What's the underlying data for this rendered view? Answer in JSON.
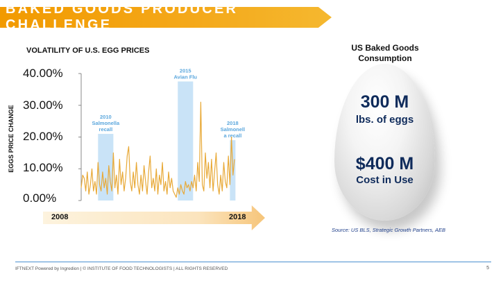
{
  "banner": {
    "title": "BAKED GOODS PRODUCER CHALLENGE"
  },
  "chart_data": {
    "type": "line",
    "title": "VOLATILITY OF U.S. EGG PRICES",
    "xlabel": "",
    "ylabel": "EGGS PRICE CHANGE",
    "y_ticks": [
      "40.00%",
      "30.00%",
      "20.00%",
      "10.00%",
      "0.00%"
    ],
    "ylim": [
      0,
      40
    ],
    "xlim": [
      2008,
      2018
    ],
    "series": [
      {
        "name": "Egg price change (%)",
        "color": "#e8a937",
        "x": [
          2008.0,
          2008.1,
          2008.2,
          2008.3,
          2008.4,
          2008.5,
          2008.6,
          2008.7,
          2008.8,
          2008.9,
          2009.0,
          2009.1,
          2009.2,
          2009.3,
          2009.4,
          2009.5,
          2009.6,
          2009.7,
          2009.8,
          2009.9,
          2010.0,
          2010.1,
          2010.2,
          2010.3,
          2010.4,
          2010.5,
          2010.6,
          2010.7,
          2010.8,
          2010.9,
          2011.0,
          2011.1,
          2011.2,
          2011.3,
          2011.4,
          2011.5,
          2011.6,
          2011.7,
          2011.8,
          2011.9,
          2012.0,
          2012.1,
          2012.2,
          2012.3,
          2012.4,
          2012.5,
          2012.6,
          2012.7,
          2012.8,
          2012.9,
          2013.0,
          2013.1,
          2013.2,
          2013.3,
          2013.4,
          2013.5,
          2013.6,
          2013.7,
          2013.8,
          2013.9,
          2014.0,
          2014.1,
          2014.2,
          2014.3,
          2014.4,
          2014.5,
          2014.6,
          2014.7,
          2014.8,
          2014.9,
          2015.0,
          2015.1,
          2015.2,
          2015.3,
          2015.4,
          2015.5,
          2015.6,
          2015.7,
          2015.8,
          2015.9,
          2016.0,
          2016.1,
          2016.2,
          2016.3,
          2016.4,
          2016.5,
          2016.6,
          2016.7,
          2016.8,
          2016.9,
          2017.0,
          2017.1,
          2017.2,
          2017.3,
          2017.4,
          2017.5,
          2017.6,
          2017.7,
          2017.8,
          2017.9,
          2018.0
        ],
        "values": [
          4,
          8,
          7,
          3,
          9,
          2,
          5,
          10,
          3,
          6,
          2,
          12,
          5,
          3,
          9,
          4,
          7,
          2,
          11,
          6,
          3,
          15,
          4,
          8,
          2,
          13,
          5,
          9,
          3,
          7,
          14,
          17,
          6,
          3,
          9,
          4,
          12,
          5,
          2,
          8,
          3,
          11,
          6,
          2,
          9,
          14,
          4,
          7,
          3,
          10,
          2,
          8,
          5,
          12,
          3,
          6,
          2,
          9,
          4,
          7,
          3,
          2,
          1,
          4,
          2,
          5,
          3,
          2,
          6,
          4,
          5,
          3,
          6,
          4,
          8,
          3,
          12,
          6,
          31,
          5,
          3,
          15,
          7,
          12,
          4,
          13,
          3,
          9,
          15,
          5,
          2,
          8,
          3,
          12,
          6,
          4,
          14,
          5,
          20,
          8,
          13
        ]
      }
    ],
    "events": [
      {
        "label_line1": "2010",
        "label_line2": "Salmonella",
        "label_line3": "recall",
        "start": 2009.1,
        "end": 2010.1,
        "height": 21
      },
      {
        "label_line1": "2015",
        "label_line2": "Avian Flu",
        "label_line3": "",
        "start": 2014.3,
        "end": 2015.3,
        "height": 37.5
      },
      {
        "label_line1": "2018",
        "label_line2": "Salmonell",
        "label_line3": "a recall",
        "start": 2017.7,
        "end": 2018.0,
        "height": 19
      }
    ]
  },
  "timeline": {
    "start_label": "2008",
    "end_label": "2018"
  },
  "egg": {
    "title_line1": "US Baked Goods",
    "title_line2": "Consumption",
    "stat1_value": "300 M",
    "stat1_label": "lbs. of eggs",
    "stat2_value": "$400 M",
    "stat2_label": "Cost in Use"
  },
  "source": "Source: US BLS, Strategic Growth Partners, AEB",
  "footer": {
    "text": "IFTNEXT Powered by Ingredion | © INSTITUTE OF FOOD TECHNOLOGISTS | ALL RIGHTS RESERVED",
    "page": "5"
  },
  "colors": {
    "accent": "#f29a00",
    "line": "#e8a937",
    "band": "#c9e3f7",
    "band_label": "#5ba7dd",
    "navy": "#0f2b5b"
  }
}
